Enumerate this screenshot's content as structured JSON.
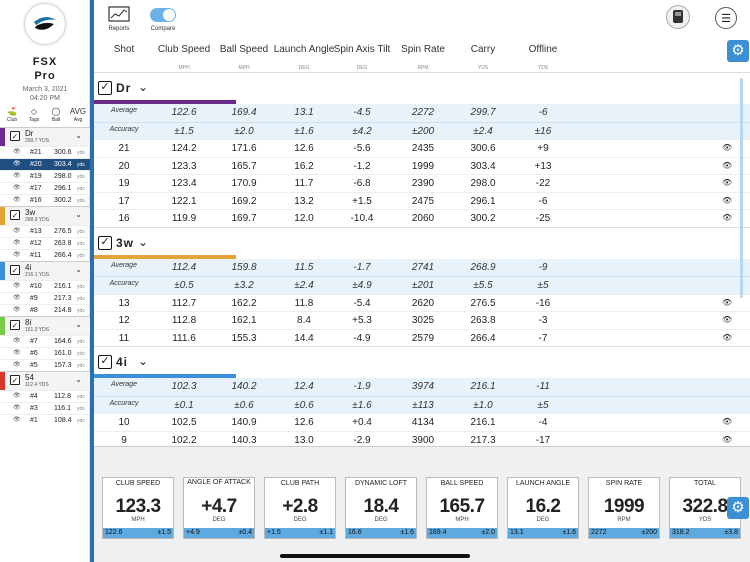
{
  "sidebar": {
    "brand_line1": "FSX",
    "brand_line2": "Pro",
    "date": "March 3, 2021",
    "time": "04:20 PM",
    "filters": [
      {
        "label": "Club",
        "icon": "club-icon",
        "glyph": "⛳"
      },
      {
        "label": "Tags",
        "icon": "tag-icon",
        "glyph": "◇"
      },
      {
        "label": "Ball",
        "icon": "ball-icon",
        "glyph": "◯"
      },
      {
        "label": "Avg",
        "icon": "avg-icon",
        "glyph": "AVG"
      }
    ],
    "groups": [
      {
        "name": "Dr",
        "sub": "299.7 YDS",
        "color": "#6a2a8a",
        "shots": [
          {
            "n": "#21",
            "v": "300.6",
            "sel": false
          },
          {
            "n": "#20",
            "v": "303.4",
            "sel": true
          },
          {
            "n": "#19",
            "v": "298.0",
            "sel": false
          },
          {
            "n": "#17",
            "v": "296.1",
            "sel": false
          },
          {
            "n": "#16",
            "v": "300.2",
            "sel": false
          }
        ]
      },
      {
        "name": "3w",
        "sub": "268.9 YDS",
        "color": "#e3a436",
        "shots": [
          {
            "n": "#13",
            "v": "276.5",
            "sel": false
          },
          {
            "n": "#12",
            "v": "263.8",
            "sel": false
          },
          {
            "n": "#11",
            "v": "266.4",
            "sel": false
          }
        ]
      },
      {
        "name": "4i",
        "sub": "216.1 YDS",
        "color": "#3d8fd8",
        "shots": [
          {
            "n": "#10",
            "v": "216.1",
            "sel": false
          },
          {
            "n": "#9",
            "v": "217.3",
            "sel": false
          },
          {
            "n": "#8",
            "v": "214.8",
            "sel": false
          }
        ]
      },
      {
        "name": "8i",
        "sub": "161.0 YDS",
        "color": "#7bc94a",
        "shots": [
          {
            "n": "#7",
            "v": "164.6",
            "sel": false
          },
          {
            "n": "#6",
            "v": "161.0",
            "sel": false
          },
          {
            "n": "#5",
            "v": "157.3",
            "sel": false
          }
        ]
      },
      {
        "name": "54",
        "sub": "112.4 YDS",
        "color": "#d9372b",
        "shots": [
          {
            "n": "#4",
            "v": "112.8",
            "sel": false
          },
          {
            "n": "#3",
            "v": "116.1",
            "sel": false
          },
          {
            "n": "#1",
            "v": "108.4",
            "sel": false
          }
        ]
      }
    ],
    "unit": "yds"
  },
  "toolbar": {
    "reports_label": "Reports",
    "compare_label": "Compare"
  },
  "columns": [
    {
      "label": "Shot",
      "unit": ""
    },
    {
      "label": "Club Speed",
      "unit": "MPH"
    },
    {
      "label": "Ball Speed",
      "unit": "MPH"
    },
    {
      "label": "Launch Angle",
      "unit": "DEG"
    },
    {
      "label": "Spin Axis Tilt",
      "unit": "DEG"
    },
    {
      "label": "Spin Rate",
      "unit": "RPM"
    },
    {
      "label": "Carry",
      "unit": "YDS"
    },
    {
      "label": "Offline",
      "unit": "YDS"
    }
  ],
  "clubs": [
    {
      "name": "Dr",
      "color": "#6a2a8a",
      "average": [
        "Average",
        "122.6",
        "169.4",
        "13.1",
        "-4.5",
        "2272",
        "299.7",
        "-6"
      ],
      "accuracy": [
        "Accuracy",
        "±1.5",
        "±2.0",
        "±1.6",
        "±4.2",
        "±200",
        "±2.4",
        "±16"
      ],
      "rows": [
        [
          "21",
          "124.2",
          "171.6",
          "12.6",
          "-5.6",
          "2435",
          "300.6",
          "+9"
        ],
        [
          "20",
          "123.3",
          "165.7",
          "16.2",
          "-1.2",
          "1999",
          "303.4",
          "+13"
        ],
        [
          "19",
          "123.4",
          "170.9",
          "11.7",
          "-6.8",
          "2390",
          "298.0",
          "-22"
        ],
        [
          "17",
          "122.1",
          "169.2",
          "13.2",
          "+1.5",
          "2475",
          "296.1",
          "-6"
        ],
        [
          "16",
          "119.9",
          "169.7",
          "12.0",
          "-10.4",
          "2060",
          "300.2",
          "-25"
        ]
      ]
    },
    {
      "name": "3w",
      "color": "#e3a436",
      "average": [
        "Average",
        "112.4",
        "159.8",
        "11.5",
        "-1.7",
        "2741",
        "268.9",
        "-9"
      ],
      "accuracy": [
        "Accuracy",
        "±0.5",
        "±3.2",
        "±2.4",
        "±4.9",
        "±201",
        "±5.5",
        "±5"
      ],
      "rows": [
        [
          "13",
          "112.7",
          "162.2",
          "11.8",
          "-5.4",
          "2620",
          "276.5",
          "-16"
        ],
        [
          "12",
          "112.8",
          "162.1",
          "8.4",
          "+5.3",
          "3025",
          "263.8",
          "-3"
        ],
        [
          "11",
          "111.6",
          "155.3",
          "14.4",
          "-4.9",
          "2579",
          "266.4",
          "-7"
        ]
      ]
    },
    {
      "name": "4i",
      "color": "#3d8fd8",
      "average": [
        "Average",
        "102.3",
        "140.2",
        "12.4",
        "-1.9",
        "3974",
        "216.1",
        "-11"
      ],
      "accuracy": [
        "Accuracy",
        "±0.1",
        "±0.6",
        "±0.6",
        "±1.6",
        "±113",
        "±1.0",
        "±5"
      ],
      "rows": [
        [
          "10",
          "102.5",
          "140.9",
          "12.6",
          "+0.4",
          "4134",
          "216.1",
          "-4"
        ],
        [
          "9",
          "102.2",
          "140.3",
          "13.0",
          "-2.9",
          "3900",
          "217.3",
          "-17"
        ]
      ]
    }
  ],
  "cards": [
    {
      "title": "CLUB SPEED",
      "value": "123.3",
      "unit": "MPH",
      "avg": "122.6",
      "acc": "±1.5"
    },
    {
      "title": "ANGLE OF ATTACK",
      "value": "+4.7",
      "unit": "DEG",
      "avg": "+4.9",
      "acc": "±0.4"
    },
    {
      "title": "CLUB PATH",
      "value": "+2.8",
      "unit": "DEG",
      "avg": "+1.5",
      "acc": "±1.1"
    },
    {
      "title": "DYNAMIC LOFT",
      "value": "18.4",
      "unit": "DEG",
      "avg": "16.6",
      "acc": "±1.6"
    },
    {
      "title": "BALL SPEED",
      "value": "165.7",
      "unit": "MPH",
      "avg": "169.4",
      "acc": "±2.0"
    },
    {
      "title": "LAUNCH ANGLE",
      "value": "16.2",
      "unit": "DEG",
      "avg": "13.1",
      "acc": "±1.6"
    },
    {
      "title": "SPIN RATE",
      "value": "1999",
      "unit": "RPM",
      "avg": "2272",
      "acc": "±200"
    },
    {
      "title": "TOTAL",
      "value": "322.8",
      "unit": "YDS",
      "avg": "318.2",
      "acc": "±3.8"
    }
  ]
}
